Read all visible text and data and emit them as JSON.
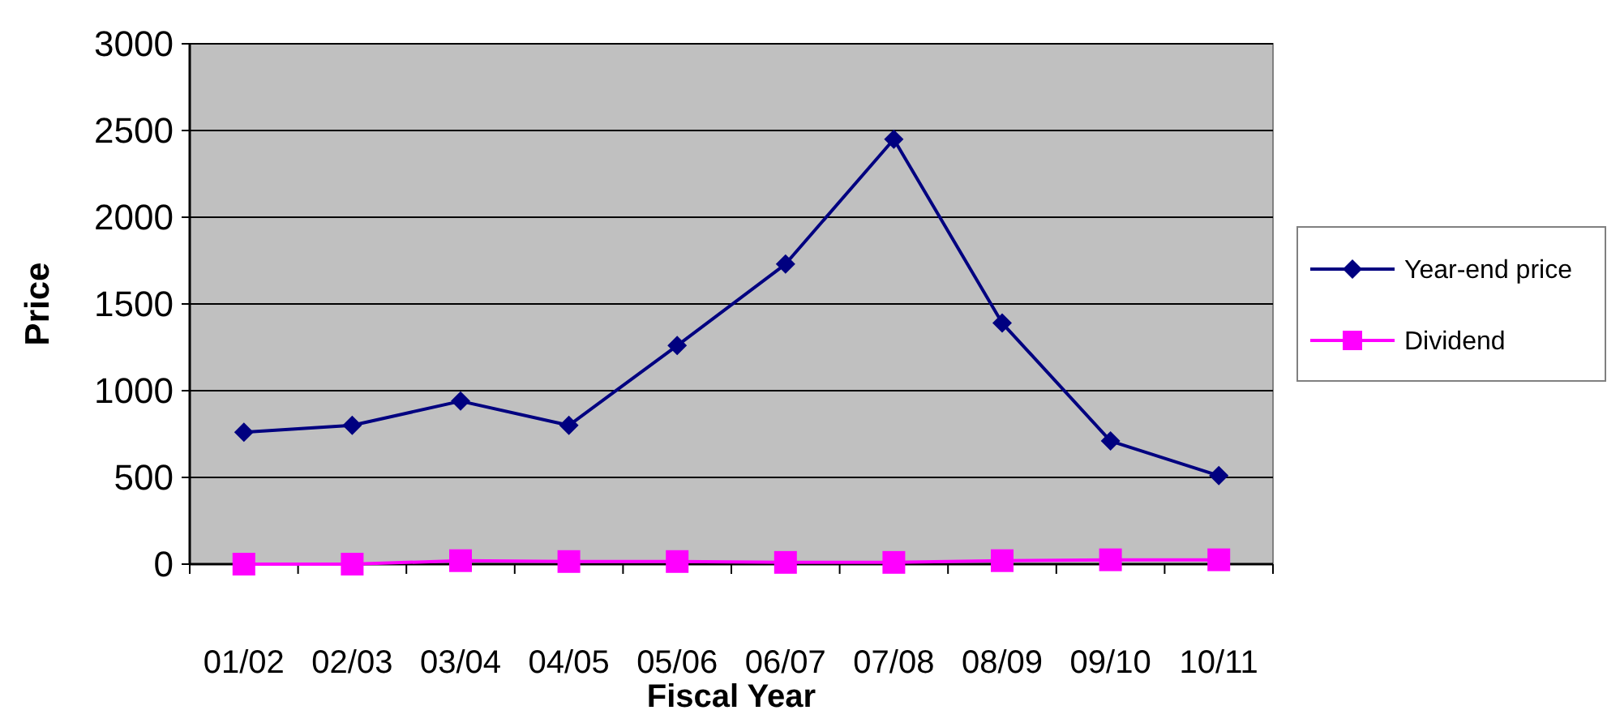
{
  "chart_data": {
    "type": "line",
    "xlabel": "Fiscal Year",
    "ylabel": "Price",
    "categories": [
      "01/02",
      "02/03",
      "03/04",
      "04/05",
      "05/06",
      "06/07",
      "07/08",
      "08/09",
      "09/10",
      "10/11"
    ],
    "series": [
      {
        "name": "Year-end price",
        "color": "#000080",
        "marker": "diamond",
        "values": [
          760,
          800,
          940,
          800,
          1260,
          1730,
          2450,
          1390,
          710,
          510
        ]
      },
      {
        "name": "Dividend",
        "color": "#ff00ff",
        "marker": "square",
        "values": [
          0,
          0,
          20,
          15,
          15,
          10,
          10,
          20,
          25,
          25
        ]
      }
    ],
    "ylim": [
      0,
      3000
    ],
    "yticks": [
      0,
      500,
      1000,
      1500,
      2000,
      2500,
      3000
    ],
    "grid": "y",
    "legend": "right"
  }
}
